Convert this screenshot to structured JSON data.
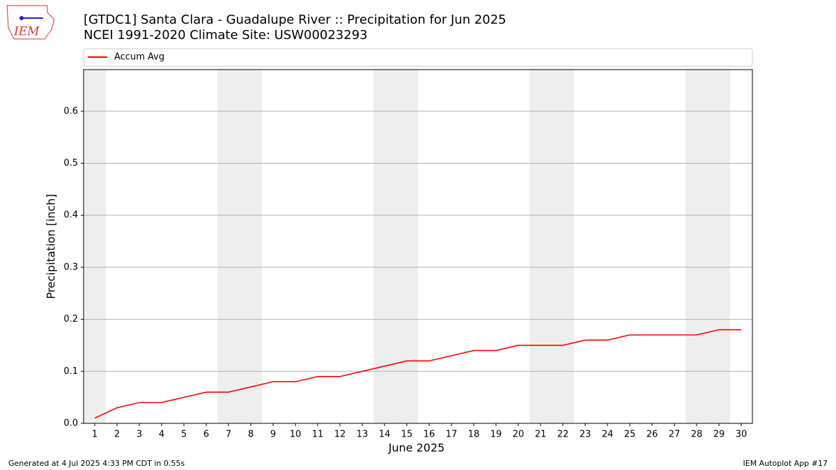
{
  "logo_text": "IEM",
  "footer_left": "Generated at 4 Jul 2025 4:33 PM CDT in 0.55s",
  "footer_right": "IEM Autoplot App #17",
  "chart_data": {
    "type": "line",
    "title": "[GTDC1] Santa Clara - Guadalupe River :: Precipitation for Jun 2025",
    "subtitle": "NCEI 1991-2020 Climate Site: USW00023293",
    "x_label": "June 2025",
    "y_label": "Precipitation [inch]",
    "x": [
      1,
      2,
      3,
      4,
      5,
      6,
      7,
      8,
      9,
      10,
      11,
      12,
      13,
      14,
      15,
      16,
      17,
      18,
      19,
      20,
      21,
      22,
      23,
      24,
      25,
      26,
      27,
      28,
      29,
      30
    ],
    "series": [
      {
        "name": "Accum Avg",
        "color": "#ff0000",
        "values": [
          0.01,
          0.03,
          0.04,
          0.04,
          0.05,
          0.06,
          0.06,
          0.07,
          0.08,
          0.08,
          0.09,
          0.09,
          0.1,
          0.11,
          0.12,
          0.12,
          0.13,
          0.14,
          0.14,
          0.15,
          0.15,
          0.15,
          0.16,
          0.16,
          0.17,
          0.17,
          0.17,
          0.17,
          0.18,
          0.18
        ]
      }
    ],
    "xlim": [
      0.5,
      30.5
    ],
    "xticks": [
      1,
      2,
      3,
      4,
      5,
      6,
      7,
      8,
      9,
      10,
      11,
      12,
      13,
      14,
      15,
      16,
      17,
      18,
      19,
      20,
      21,
      22,
      23,
      24,
      25,
      26,
      27,
      28,
      29,
      30
    ],
    "ylim": [
      0,
      0.68
    ],
    "yticks": [
      {
        "value": 0,
        "label": "0.0"
      },
      0.1,
      0.2,
      0.3,
      0.4,
      0.5,
      0.6
    ],
    "grid": true,
    "legend": "top"
  }
}
